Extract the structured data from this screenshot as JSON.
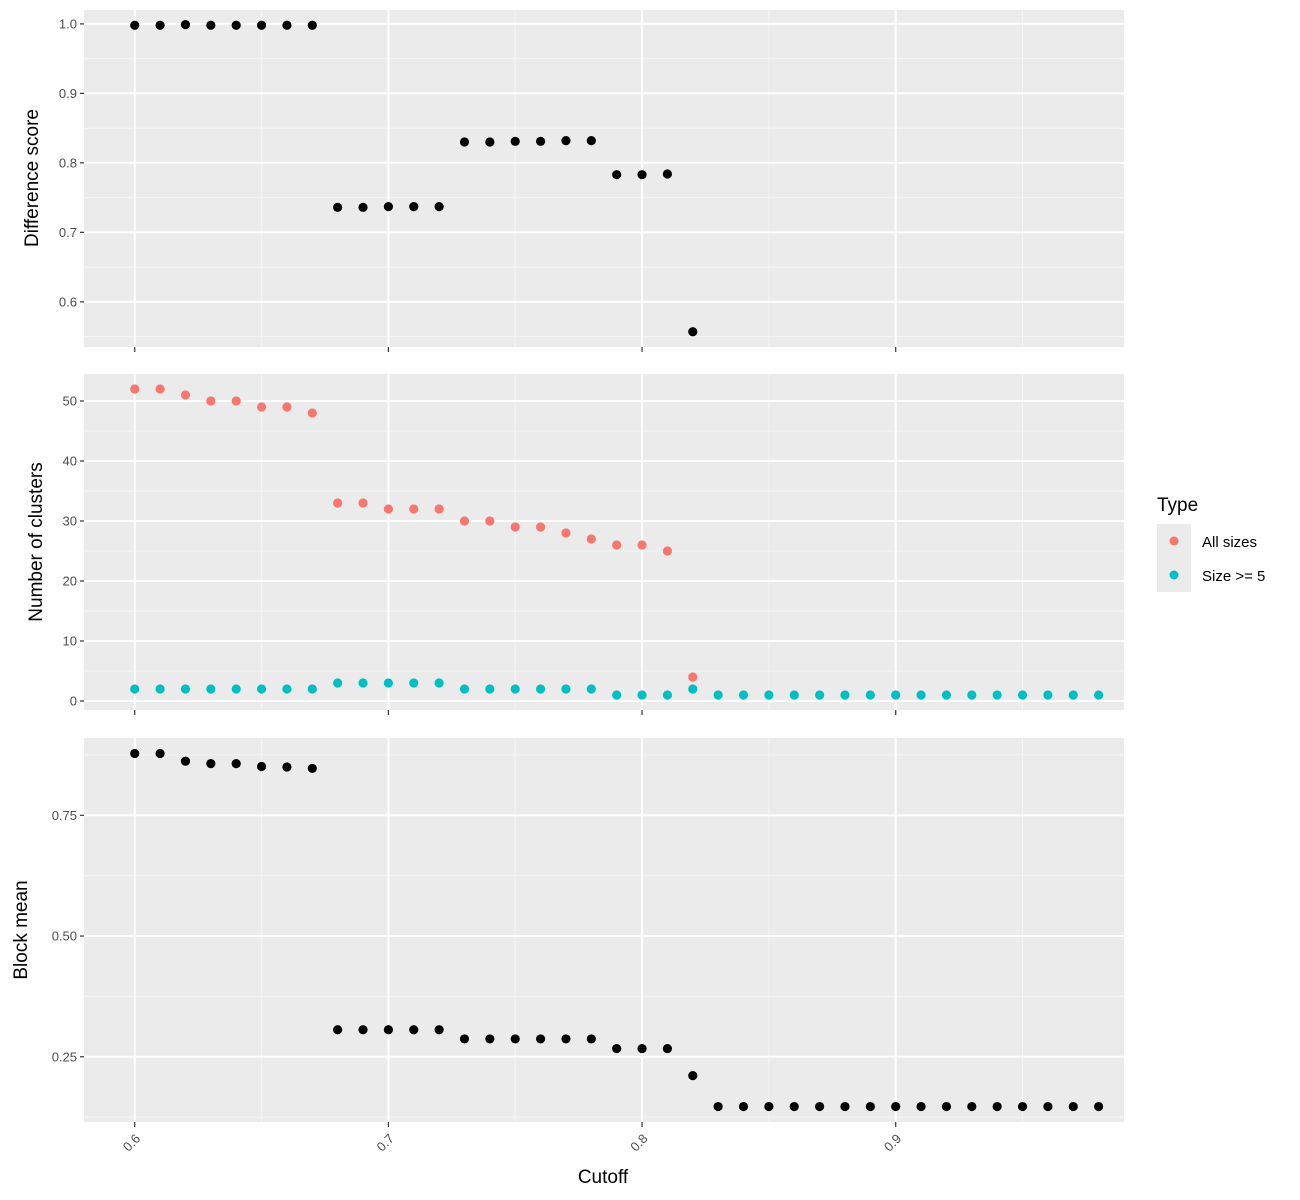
{
  "chart_data": [
    {
      "type": "scatter",
      "ylabel": "Difference score",
      "xlim": [
        0.58,
        0.99
      ],
      "ylim": [
        0.535,
        1.02
      ],
      "yticks": [
        0.6,
        0.7,
        0.8,
        0.9,
        1.0
      ],
      "ytick_labels": [
        "0.6",
        "0.7",
        "0.8",
        "0.9",
        "1.0"
      ],
      "grid": true,
      "series": [
        {
          "color": "#000000",
          "x": [
            0.6,
            0.61,
            0.62,
            0.63,
            0.64,
            0.65,
            0.66,
            0.67,
            0.68,
            0.69,
            0.7,
            0.71,
            0.72,
            0.73,
            0.74,
            0.75,
            0.76,
            0.77,
            0.78,
            0.79,
            0.8,
            0.81,
            0.82
          ],
          "y": [
            0.998,
            0.998,
            0.999,
            0.998,
            0.998,
            0.998,
            0.998,
            0.998,
            0.736,
            0.736,
            0.737,
            0.737,
            0.737,
            0.83,
            0.83,
            0.831,
            0.831,
            0.832,
            0.832,
            0.783,
            0.783,
            0.784,
            0.557
          ]
        }
      ]
    },
    {
      "type": "scatter",
      "ylabel": "Number of clusters",
      "xlim": [
        0.58,
        0.99
      ],
      "ylim": [
        -1.5,
        54.5
      ],
      "yticks": [
        0,
        10,
        20,
        30,
        40,
        50
      ],
      "ytick_labels": [
        "0",
        "10",
        "20",
        "30",
        "40",
        "50"
      ],
      "grid": true,
      "series": [
        {
          "name": "All sizes",
          "color": "#F8766D",
          "x": [
            0.6,
            0.61,
            0.62,
            0.63,
            0.64,
            0.65,
            0.66,
            0.67,
            0.68,
            0.69,
            0.7,
            0.71,
            0.72,
            0.73,
            0.74,
            0.75,
            0.76,
            0.77,
            0.78,
            0.79,
            0.8,
            0.81,
            0.82
          ],
          "y": [
            52,
            52,
            51,
            50,
            50,
            49,
            49,
            48,
            33,
            33,
            32,
            32,
            32,
            30,
            30,
            29,
            29,
            28,
            27,
            26,
            26,
            25,
            4
          ]
        },
        {
          "name": "Size >= 5",
          "color": "#00BFC4",
          "x": [
            0.6,
            0.61,
            0.62,
            0.63,
            0.64,
            0.65,
            0.66,
            0.67,
            0.68,
            0.69,
            0.7,
            0.71,
            0.72,
            0.73,
            0.74,
            0.75,
            0.76,
            0.77,
            0.78,
            0.79,
            0.8,
            0.81,
            0.82,
            0.83,
            0.84,
            0.85,
            0.86,
            0.87,
            0.88,
            0.89,
            0.9,
            0.91,
            0.92,
            0.93,
            0.94,
            0.95,
            0.96,
            0.97,
            0.98
          ],
          "y": [
            2,
            2,
            2,
            2,
            2,
            2,
            2,
            2,
            3,
            3,
            3,
            3,
            3,
            2,
            2,
            2,
            2,
            2,
            2,
            1,
            1,
            1,
            2,
            1,
            1,
            1,
            1,
            1,
            1,
            1,
            1,
            1,
            1,
            1,
            1,
            1,
            1,
            1,
            1
          ]
        }
      ]
    },
    {
      "type": "scatter",
      "xlabel": "Cutoff",
      "ylabel": "Block mean",
      "xlim": [
        0.58,
        0.99
      ],
      "ylim": [
        0.115,
        0.91
      ],
      "yticks": [
        0.25,
        0.5,
        0.75
      ],
      "ytick_labels": [
        "0.25",
        "0.50",
        "0.75"
      ],
      "xticks": [
        0.6,
        0.7,
        0.8,
        0.9
      ],
      "xtick_labels": [
        "0.6",
        "0.7",
        "0.8",
        "0.9"
      ],
      "grid": true,
      "series": [
        {
          "color": "#000000",
          "x": [
            0.6,
            0.61,
            0.62,
            0.63,
            0.64,
            0.65,
            0.66,
            0.67,
            0.68,
            0.69,
            0.7,
            0.71,
            0.72,
            0.73,
            0.74,
            0.75,
            0.76,
            0.77,
            0.78,
            0.79,
            0.8,
            0.81,
            0.82,
            0.83,
            0.84,
            0.85,
            0.86,
            0.87,
            0.88,
            0.89,
            0.9,
            0.91,
            0.92,
            0.93,
            0.94,
            0.95,
            0.96,
            0.97,
            0.98
          ],
          "y": [
            0.878,
            0.878,
            0.862,
            0.857,
            0.857,
            0.851,
            0.85,
            0.847,
            0.306,
            0.306,
            0.306,
            0.306,
            0.306,
            0.287,
            0.287,
            0.287,
            0.287,
            0.287,
            0.287,
            0.267,
            0.267,
            0.267,
            0.211,
            0.147,
            0.147,
            0.147,
            0.147,
            0.147,
            0.147,
            0.147,
            0.147,
            0.147,
            0.147,
            0.147,
            0.147,
            0.147,
            0.147,
            0.147,
            0.147
          ]
        }
      ]
    }
  ],
  "legend": {
    "title": "Type",
    "placement": "right",
    "items": [
      {
        "label": "All sizes",
        "color": "#F8766D"
      },
      {
        "label": "Size >= 5",
        "color": "#00BFC4"
      }
    ]
  },
  "style": {
    "panel_background": "#EBEBEB",
    "grid_major": "#FFFFFF",
    "grid_minor": "#F5F5F5",
    "tick_color": "#333333"
  }
}
